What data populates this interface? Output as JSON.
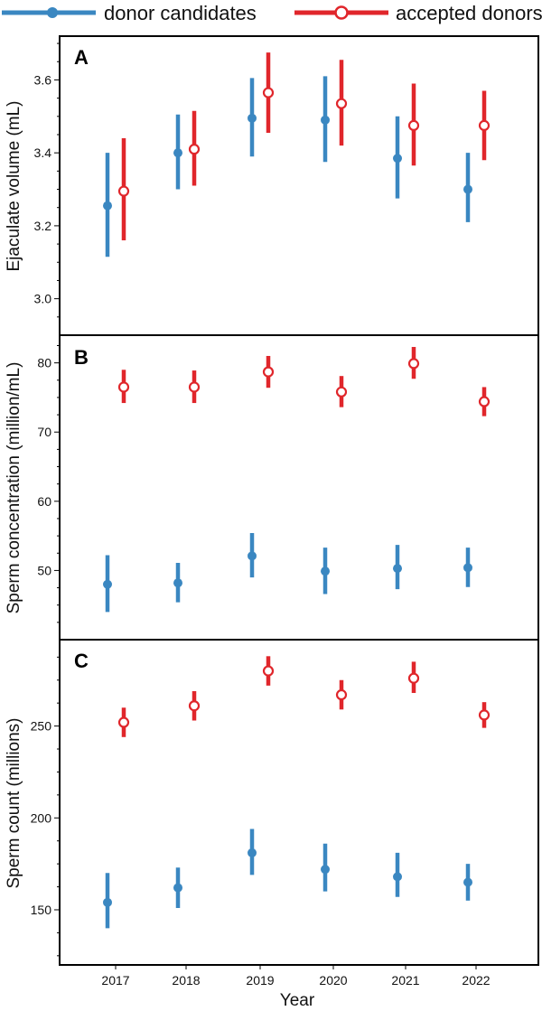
{
  "legend": {
    "candidates_label": "donor candidates",
    "accepted_label": "accepted donors"
  },
  "colors": {
    "candidates": "#3a87c1",
    "accepted": "#e0262b"
  },
  "x_label": "Year",
  "chart_data": [
    {
      "type": "scatter",
      "panel": "A",
      "ylabel": "Ejaculate volume (mL)",
      "categories": [
        "2017",
        "2018",
        "2019",
        "2020",
        "2021",
        "2022"
      ],
      "ylim": [
        2.9,
        3.72
      ],
      "yticks": [
        3.0,
        3.2,
        3.4,
        3.6
      ],
      "ytick_labels": [
        "3.0",
        "3.2",
        "3.4",
        "3.6"
      ],
      "series": [
        {
          "name": "donor candidates",
          "values": [
            3.255,
            3.4,
            3.495,
            3.49,
            3.385,
            3.3
          ],
          "lower": [
            3.115,
            3.3,
            3.39,
            3.375,
            3.275,
            3.21
          ],
          "upper": [
            3.4,
            3.505,
            3.605,
            3.61,
            3.5,
            3.4
          ]
        },
        {
          "name": "accepted donors",
          "values": [
            3.295,
            3.41,
            3.565,
            3.535,
            3.475,
            3.475
          ],
          "lower": [
            3.16,
            3.31,
            3.455,
            3.42,
            3.365,
            3.38
          ],
          "upper": [
            3.44,
            3.515,
            3.675,
            3.655,
            3.59,
            3.57
          ]
        }
      ]
    },
    {
      "type": "scatter",
      "panel": "B",
      "ylabel": "Sperm concentration (million/mL)",
      "categories": [
        "2017",
        "2018",
        "2019",
        "2020",
        "2021",
        "2022"
      ],
      "ylim": [
        40,
        84
      ],
      "yticks": [
        50,
        60,
        70,
        80
      ],
      "ytick_labels": [
        "50",
        "60",
        "70",
        "80"
      ],
      "series": [
        {
          "name": "donor candidates",
          "values": [
            48.0,
            48.2,
            52.1,
            49.9,
            50.3,
            50.4
          ],
          "lower": [
            44.0,
            45.4,
            49.0,
            46.6,
            47.3,
            47.6
          ],
          "upper": [
            52.2,
            51.1,
            55.4,
            53.3,
            53.7,
            53.3
          ]
        },
        {
          "name": "accepted donors",
          "values": [
            76.5,
            76.5,
            78.7,
            75.8,
            79.9,
            74.4
          ],
          "lower": [
            74.2,
            74.2,
            76.4,
            73.6,
            77.7,
            72.3
          ],
          "upper": [
            79.0,
            78.9,
            81.0,
            78.1,
            82.3,
            76.5
          ]
        }
      ]
    },
    {
      "type": "scatter",
      "panel": "C",
      "ylabel": "Sperm count (millions)",
      "categories": [
        "2017",
        "2018",
        "2019",
        "2020",
        "2021",
        "2022"
      ],
      "ylim": [
        120,
        297
      ],
      "yticks": [
        150,
        200,
        250
      ],
      "ytick_labels": [
        "150",
        "200",
        "250"
      ],
      "series": [
        {
          "name": "donor candidates",
          "values": [
            154,
            162,
            181,
            172,
            168,
            165
          ],
          "lower": [
            140,
            151,
            169,
            160,
            157,
            155
          ],
          "upper": [
            170,
            173,
            194,
            186,
            181,
            175
          ]
        },
        {
          "name": "accepted donors",
          "values": [
            252,
            261,
            280,
            267,
            276,
            256
          ],
          "lower": [
            244,
            253,
            272,
            259,
            268,
            249
          ],
          "upper": [
            260,
            269,
            288,
            275,
            285,
            263
          ]
        }
      ]
    }
  ]
}
